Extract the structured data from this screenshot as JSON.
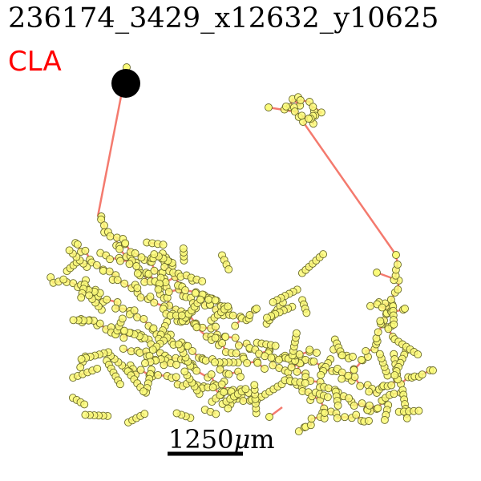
{
  "title": "236174_3429_x12632_y10625",
  "region_label": "CLA",
  "scale_bar": {
    "value": "1250",
    "unit_symbol": "μ",
    "unit_suffix": "m"
  },
  "colors": {
    "soma": "#000000",
    "branch": "#f47a6e",
    "node_fill": "#fbfb7a",
    "node_edge": "#6b6b2a",
    "region_label": "#ff0000"
  }
}
